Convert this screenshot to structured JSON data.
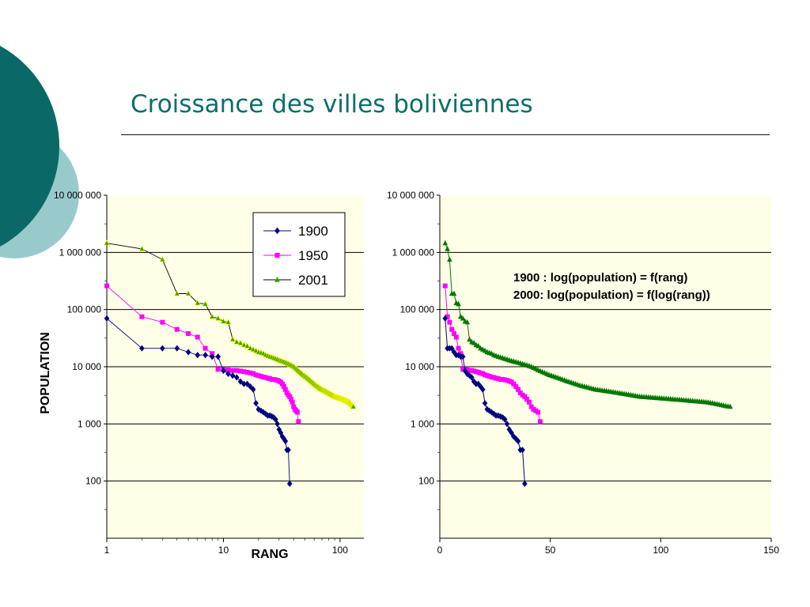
{
  "slide": {
    "title": "Croissance des villes boliviennes"
  },
  "colors": {
    "title": "#0b6e69",
    "plot_bg": "#ffffe8",
    "gridline": "#000000",
    "deco_dark": "#0a6966",
    "deco_light": "#99cacb",
    "series_1900": "#000080",
    "series_1950": "#ff00ff",
    "series_2001_line_left": "#000000",
    "series_2001_marker_left": "#3f9f00",
    "series_2001_highlight_left": "#ffff00",
    "series_2001_right": "#007700"
  },
  "chart_data": [
    {
      "type": "line",
      "x_scale": "log",
      "y_scale": "log",
      "xlabel": "RANG",
      "ylabel": "POPULATION",
      "xlim": [
        1,
        160
      ],
      "ylim": [
        10,
        10000000
      ],
      "x_ticks": [
        1,
        10,
        100
      ],
      "x_tick_labels": [
        "1",
        "10",
        "100"
      ],
      "y_ticks": [
        100,
        1000,
        10000,
        100000,
        1000000,
        10000000
      ],
      "y_tick_labels": [
        "100",
        "1 000",
        "10 000",
        "100 000",
        "1 000 000",
        "10 000 000"
      ],
      "grid": "horizontal",
      "legend_position": "top-right",
      "series": [
        {
          "name": "1900",
          "marker": "diamond",
          "x": [
            1,
            2,
            3,
            4,
            5,
            6,
            7,
            8,
            9,
            10,
            11,
            12,
            13,
            14,
            15,
            16,
            17,
            18,
            19,
            20,
            21,
            22,
            23,
            24,
            25,
            26,
            27,
            28,
            29,
            30,
            31,
            32,
            33,
            34,
            35,
            36,
            37
          ],
          "y": [
            70000,
            21000,
            21000,
            21000,
            18000,
            16000,
            16000,
            15000,
            15000,
            8500,
            7500,
            7000,
            6500,
            5500,
            5000,
            5000,
            4500,
            4000,
            2300,
            1800,
            1700,
            1600,
            1500,
            1400,
            1400,
            1350,
            1300,
            1200,
            1000,
            800,
            700,
            600,
            550,
            500,
            350,
            350,
            90
          ]
        },
        {
          "name": "1950",
          "marker": "square",
          "x": [
            1,
            2,
            3,
            4,
            5,
            6,
            7,
            8,
            9,
            10,
            11,
            12,
            13,
            14,
            15,
            16,
            17,
            18,
            19,
            20,
            21,
            22,
            23,
            24,
            25,
            26,
            27,
            28,
            29,
            30,
            31,
            32,
            33,
            34,
            35,
            36,
            37,
            38,
            39,
            40,
            41,
            42,
            43,
            44
          ],
          "y": [
            260000,
            75000,
            60000,
            45000,
            38000,
            33000,
            21000,
            17000,
            9000,
            9000,
            8800,
            8600,
            8600,
            8400,
            8200,
            8000,
            7800,
            7600,
            7200,
            7000,
            6800,
            6600,
            6500,
            6300,
            6200,
            6000,
            6000,
            5900,
            5800,
            5600,
            5400,
            5000,
            4500,
            4000,
            3500,
            3200,
            3000,
            2700,
            2400,
            2000,
            1800,
            1700,
            1600,
            1100
          ]
        },
        {
          "name": "2001",
          "marker": "triangle",
          "x": [
            1,
            2,
            3,
            4,
            5,
            6,
            7,
            8,
            9,
            10,
            11,
            12,
            13,
            14,
            15,
            16,
            17,
            18,
            19,
            20,
            21,
            22,
            23,
            24,
            25,
            26,
            27,
            28,
            29,
            30,
            31,
            32,
            33,
            34,
            35,
            36,
            37,
            38,
            39,
            40,
            41,
            42,
            43,
            44,
            45,
            46,
            47,
            48,
            49,
            50,
            51,
            52,
            53,
            54,
            55,
            56,
            57,
            58,
            59,
            60,
            61,
            62,
            63,
            64,
            65,
            66,
            67,
            68,
            69,
            70,
            71,
            72,
            73,
            74,
            75,
            76,
            77,
            78,
            79,
            80,
            81,
            82,
            83,
            84,
            85,
            86,
            87,
            88,
            89,
            90,
            91,
            92,
            93,
            94,
            95,
            96,
            97,
            98,
            99,
            100,
            101,
            102,
            103,
            104,
            105,
            106,
            107,
            108,
            109,
            110,
            111,
            112,
            113,
            114,
            115,
            116,
            117,
            118,
            119,
            120,
            121,
            122,
            123,
            124,
            125,
            126,
            127,
            128,
            129,
            130
          ],
          "y": [
            1450000,
            1150000,
            750000,
            190000,
            190000,
            130000,
            125000,
            75000,
            70000,
            62000,
            60000,
            30000,
            27000,
            26000,
            24000,
            23000,
            21000,
            20000,
            19000,
            18000,
            17500,
            17000,
            16000,
            15500,
            15000,
            14600,
            14200,
            13800,
            13400,
            13000,
            12700,
            12400,
            12100,
            11800,
            11500,
            11200,
            10900,
            10600,
            10300,
            10000,
            9600,
            9200,
            8800,
            8400,
            8100,
            7800,
            7500,
            7200,
            7000,
            6800,
            6600,
            6400,
            6200,
            6000,
            5800,
            5600,
            5450,
            5300,
            5150,
            5000,
            4850,
            4700,
            4600,
            4500,
            4400,
            4300,
            4200,
            4100,
            4000,
            3950,
            3900,
            3850,
            3800,
            3750,
            3700,
            3650,
            3600,
            3550,
            3500,
            3450,
            3400,
            3350,
            3300,
            3250,
            3200,
            3150,
            3100,
            3050,
            3000,
            2980,
            2960,
            2940,
            2920,
            2900,
            2880,
            2860,
            2840,
            2820,
            2800,
            2780,
            2760,
            2740,
            2720,
            2700,
            2680,
            2660,
            2640,
            2620,
            2600,
            2580,
            2560,
            2540,
            2520,
            2500,
            2480,
            2460,
            2440,
            2420,
            2400,
            2380,
            2340,
            2300,
            2260,
            2220,
            2180,
            2140,
            2100,
            2060,
            2030,
            2000
          ]
        }
      ]
    },
    {
      "type": "scatter",
      "x_scale": "linear",
      "y_scale": "log",
      "xlim": [
        0,
        150
      ],
      "ylim": [
        10,
        10000000
      ],
      "x_ticks": [
        0,
        50,
        100,
        150
      ],
      "x_tick_labels": [
        "0",
        "50",
        "100",
        "150"
      ],
      "y_ticks": [
        100,
        1000,
        10000,
        100000,
        1000000,
        10000000
      ],
      "y_tick_labels": [
        "100",
        "1 000",
        "10 000",
        "100 000",
        "1 000 000",
        "10 000 000"
      ],
      "grid": "horizontal",
      "annotations": [
        "1900 : log(population) = f(rang)",
        "2000: log(population) = f(log(rang))"
      ],
      "series_ref": "same data as first chart (1900, 1950, 2001) plotted against linear rank"
    }
  ]
}
